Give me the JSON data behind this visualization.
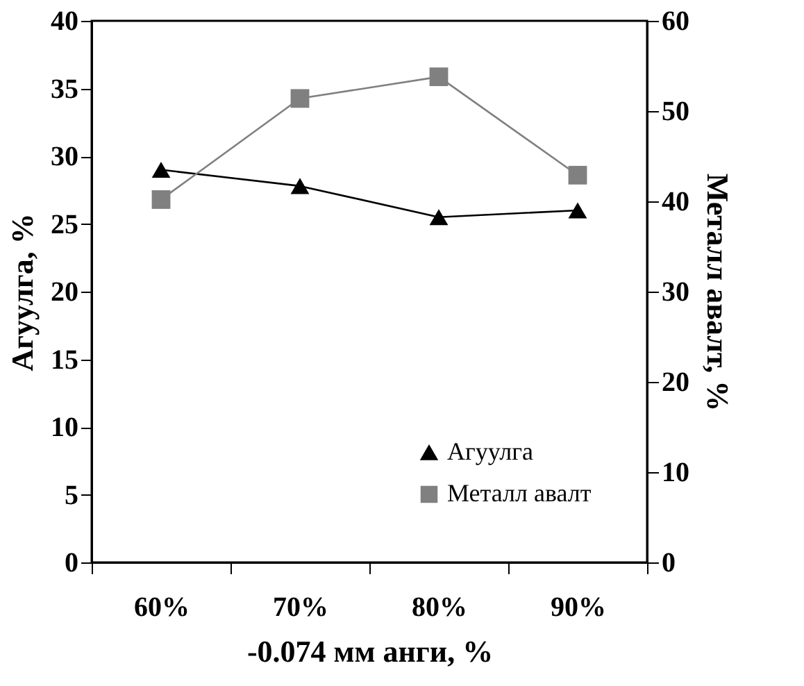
{
  "chart_data": {
    "type": "line",
    "xlabel": "-0.074 мм анги, %",
    "ylabel": "Агуулга, %",
    "y2label": "Металл авалт, %",
    "categories": [
      "60%",
      "70%",
      "80%",
      "90%"
    ],
    "series": [
      {
        "name": "Агуулга",
        "color": "#000000",
        "values": [
          29.0,
          27.8,
          25.5,
          26.0
        ],
        "marker": "triangle"
      },
      {
        "name": "Металл авалт",
        "color": "#808080",
        "values": [
          40.2,
          51.4,
          53.8,
          42.9
        ],
        "marker": "square",
        "axis": "y2"
      }
    ],
    "ylim": [
      0,
      40
    ],
    "yticks": [
      0,
      5,
      10,
      15,
      20,
      25,
      30,
      35,
      40
    ],
    "y2lim": [
      0,
      60
    ],
    "y2ticks": [
      0,
      10,
      20,
      30,
      40,
      50,
      60
    ],
    "grid": false,
    "legend": "bottom right",
    "line_style": "solid"
  }
}
